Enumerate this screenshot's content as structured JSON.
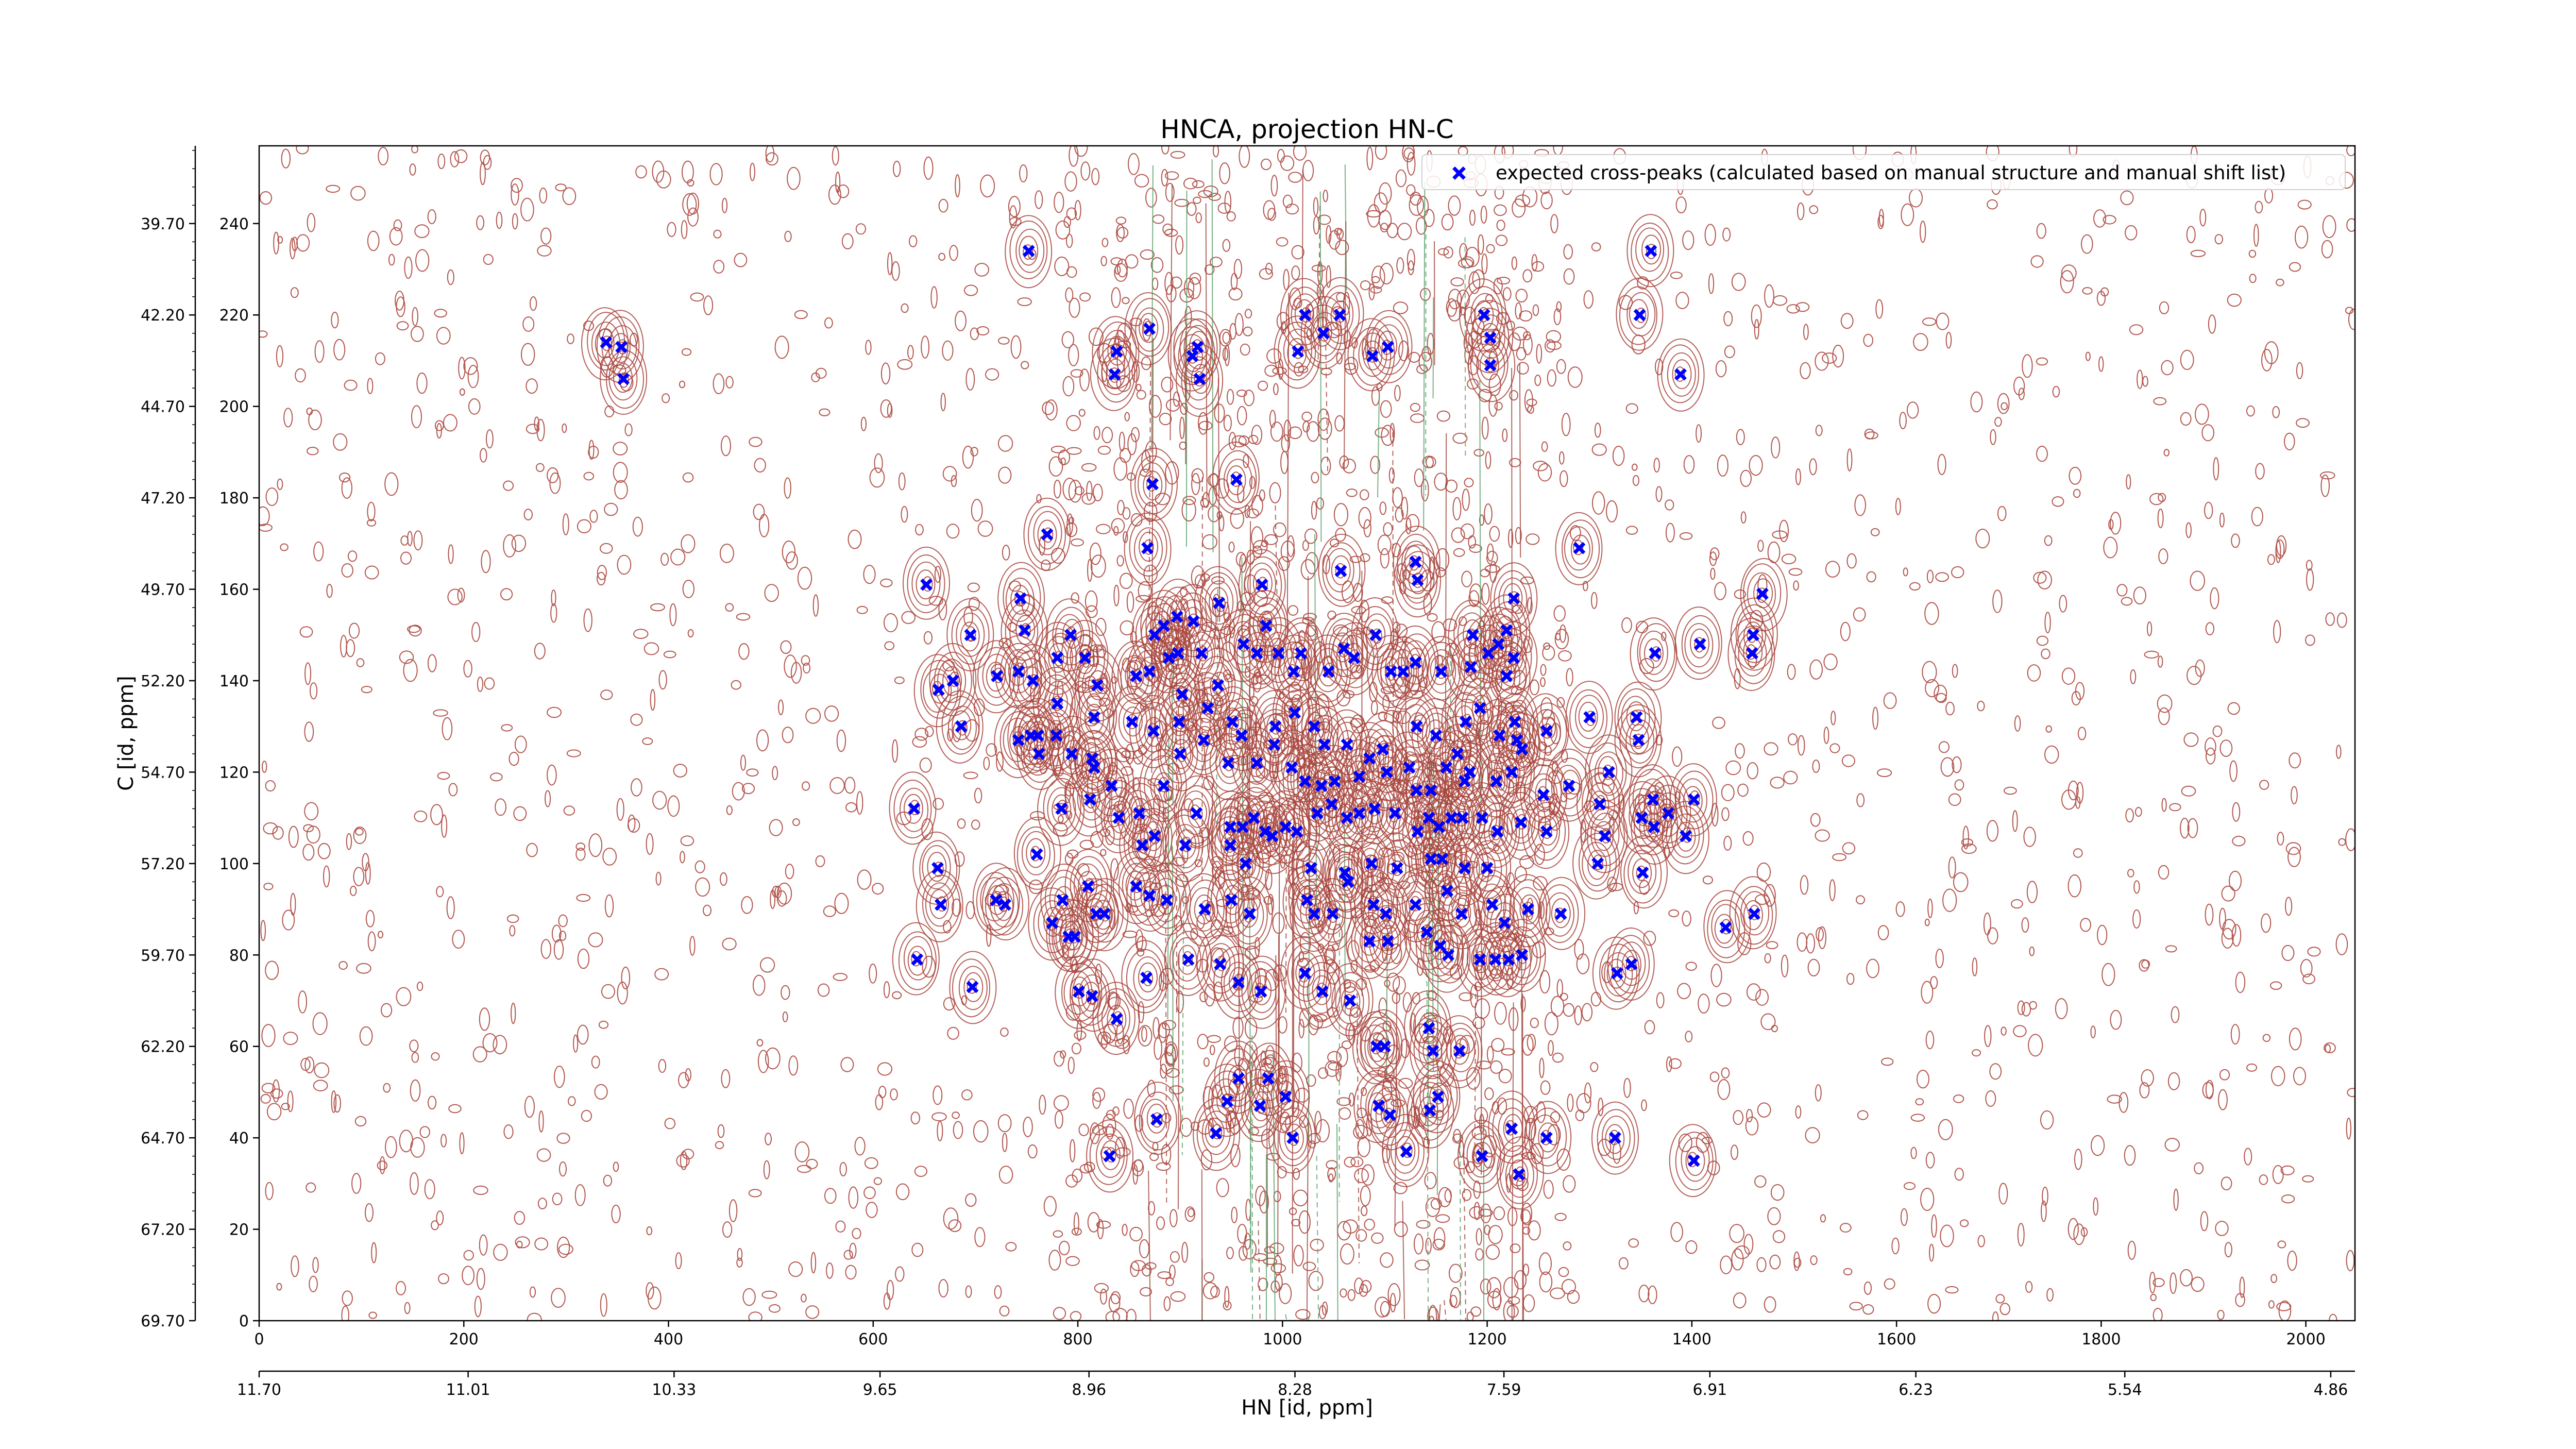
{
  "chart_data": {
    "type": "scatter",
    "title": "HNCA, projection HN-C",
    "xlabel": "HN [id, ppm]",
    "ylabel": "C [id, ppm]",
    "grid": false,
    "legend_position": "top-right",
    "x_index_range": [
      0,
      2048
    ],
    "y_index_range": [
      0,
      257
    ],
    "x_index_ticks": [
      "0",
      "200",
      "400",
      "600",
      "800",
      "1000",
      "1200",
      "1400",
      "1600",
      "1800",
      "2000"
    ],
    "x_ppm_range": [
      11.7,
      4.78
    ],
    "x_ppm_ticks": [
      "11.70",
      "11.01",
      "10.33",
      "9.65",
      "8.96",
      "8.28",
      "7.59",
      "6.91",
      "6.23",
      "5.54",
      "4.86"
    ],
    "y_index_ticks": [
      "0",
      "20",
      "40",
      "60",
      "80",
      "100",
      "120",
      "140",
      "160",
      "180",
      "200",
      "220",
      "240"
    ],
    "y_ppm_ticks": [
      "69.70",
      "67.20",
      "64.70",
      "62.20",
      "59.70",
      "57.20",
      "54.70",
      "52.20",
      "49.70",
      "47.20",
      "44.70",
      "42.20",
      "39.70"
    ],
    "series": [
      {
        "name": "expected cross-peaks (calculated based on manual structure and manual shift list)",
        "color": "#0000ff",
        "marker": "x",
        "points": [
          [
            339,
            214
          ],
          [
            354,
            213
          ],
          [
            356,
            206
          ],
          [
            752,
            234
          ],
          [
            1360,
            234
          ],
          [
            1349,
            220
          ],
          [
            1389,
            207
          ],
          [
            838,
            212
          ],
          [
            870,
            217
          ],
          [
            836,
            207
          ],
          [
            912,
            211
          ],
          [
            919,
            206
          ],
          [
            917,
            213
          ],
          [
            1022,
            220
          ],
          [
            1040,
            216
          ],
          [
            1015,
            212
          ],
          [
            1056,
            220
          ],
          [
            1088,
            211
          ],
          [
            1103,
            213
          ],
          [
            1197,
            220
          ],
          [
            1203,
            215
          ],
          [
            1203,
            209
          ],
          [
            873,
            183
          ],
          [
            955,
            184
          ],
          [
            652,
            161
          ],
          [
            770,
            172
          ],
          [
            868,
            169
          ],
          [
            1057,
            164
          ],
          [
            1130,
            166
          ],
          [
            1132,
            162
          ],
          [
            1290,
            169
          ],
          [
            1226,
            158
          ],
          [
            1469,
            159
          ],
          [
            1460,
            150
          ],
          [
            1459,
            146
          ],
          [
            1364,
            146
          ],
          [
            1408,
            148
          ],
          [
            695,
            150
          ],
          [
            678,
            140
          ],
          [
            664,
            138
          ],
          [
            721,
            141
          ],
          [
            744,
            158
          ],
          [
            748,
            151
          ],
          [
            742,
            142
          ],
          [
            756,
            140
          ],
          [
            780,
            145
          ],
          [
            793,
            150
          ],
          [
            807,
            145
          ],
          [
            819,
            139
          ],
          [
            816,
            132
          ],
          [
            780,
            135
          ],
          [
            779,
            128
          ],
          [
            761,
            128
          ],
          [
            762,
            124
          ],
          [
            742,
            127
          ],
          [
            754,
            128
          ],
          [
            794,
            124
          ],
          [
            814,
            123
          ],
          [
            857,
            141
          ],
          [
            870,
            142
          ],
          [
            875,
            150
          ],
          [
            884,
            152
          ],
          [
            889,
            145
          ],
          [
            897,
            154
          ],
          [
            898,
            146
          ],
          [
            902,
            137
          ],
          [
            913,
            153
          ],
          [
            938,
            157
          ],
          [
            921,
            146
          ],
          [
            937,
            139
          ],
          [
            962,
            148
          ],
          [
            980,
            161
          ],
          [
            984,
            152
          ],
          [
            975,
            146
          ],
          [
            996,
            146
          ],
          [
            1011,
            142
          ],
          [
            1018,
            146
          ],
          [
            1045,
            142
          ],
          [
            1060,
            147
          ],
          [
            1070,
            145
          ],
          [
            1091,
            150
          ],
          [
            1106,
            142
          ],
          [
            1118,
            142
          ],
          [
            1130,
            144
          ],
          [
            1155,
            142
          ],
          [
            1184,
            143
          ],
          [
            1186,
            150
          ],
          [
            1201,
            146
          ],
          [
            1211,
            148
          ],
          [
            1219,
            141
          ],
          [
            1226,
            145
          ],
          [
            1219,
            151
          ],
          [
            1179,
            131
          ],
          [
            1193,
            134
          ],
          [
            1227,
            131
          ],
          [
            1258,
            129
          ],
          [
            1300,
            132
          ],
          [
            1346,
            132
          ],
          [
            1348,
            127
          ],
          [
            686,
            130
          ],
          [
            853,
            131
          ],
          [
            874,
            129
          ],
          [
            899,
            131
          ],
          [
            923,
            127
          ],
          [
            927,
            134
          ],
          [
            951,
            131
          ],
          [
            960,
            128
          ],
          [
            993,
            130
          ],
          [
            1012,
            133
          ],
          [
            1031,
            130
          ],
          [
            1041,
            126
          ],
          [
            1063,
            126
          ],
          [
            1098,
            125
          ],
          [
            1131,
            130
          ],
          [
            1150,
            128
          ],
          [
            1171,
            124
          ],
          [
            1183,
            120
          ],
          [
            1212,
            128
          ],
          [
            1229,
            127
          ],
          [
            1234,
            125
          ],
          [
            816,
            121
          ],
          [
            833,
            117
          ],
          [
            884,
            117
          ],
          [
            900,
            124
          ],
          [
            947,
            122
          ],
          [
            975,
            122
          ],
          [
            992,
            126
          ],
          [
            1009,
            121
          ],
          [
            1022,
            118
          ],
          [
            1038,
            117
          ],
          [
            1051,
            118
          ],
          [
            1075,
            119
          ],
          [
            1085,
            123
          ],
          [
            1102,
            120
          ],
          [
            1124,
            121
          ],
          [
            1131,
            116
          ],
          [
            1145,
            116
          ],
          [
            1160,
            121
          ],
          [
            1178,
            118
          ],
          [
            1209,
            118
          ],
          [
            1224,
            120
          ],
          [
            1319,
            120
          ],
          [
            1280,
            117
          ],
          [
            1377,
            111
          ],
          [
            1402,
            114
          ],
          [
            1310,
            113
          ],
          [
            1255,
            115
          ],
          [
            640,
            112
          ],
          [
            784,
            112
          ],
          [
            812,
            114
          ],
          [
            840,
            110
          ],
          [
            860,
            111
          ],
          [
            875,
            106
          ],
          [
            916,
            111
          ],
          [
            949,
            108
          ],
          [
            961,
            108
          ],
          [
            972,
            110
          ],
          [
            983,
            107
          ],
          [
            1003,
            108
          ],
          [
            1014,
            107
          ],
          [
            1034,
            111
          ],
          [
            1048,
            113
          ],
          [
            1063,
            110
          ],
          [
            1075,
            111
          ],
          [
            1090,
            112
          ],
          [
            1110,
            111
          ],
          [
            1132,
            107
          ],
          [
            1143,
            110
          ],
          [
            1153,
            108
          ],
          [
            1165,
            110
          ],
          [
            1176,
            110
          ],
          [
            1195,
            110
          ],
          [
            1210,
            107
          ],
          [
            1233,
            109
          ],
          [
            1258,
            107
          ],
          [
            1315,
            106
          ],
          [
            1351,
            110
          ],
          [
            1363,
            108
          ],
          [
            1362,
            114
          ],
          [
            1394,
            106
          ],
          [
            1308,
            100
          ],
          [
            1352,
            98
          ],
          [
            863,
            104
          ],
          [
            905,
            104
          ],
          [
            949,
            104
          ],
          [
            964,
            100
          ],
          [
            990,
            106
          ],
          [
            1028,
            99
          ],
          [
            1061,
            98
          ],
          [
            1087,
            100
          ],
          [
            1112,
            99
          ],
          [
            1145,
            101
          ],
          [
            1156,
            101
          ],
          [
            1178,
            99
          ],
          [
            1200,
            99
          ],
          [
            760,
            102
          ],
          [
            663,
            99
          ],
          [
            666,
            91
          ],
          [
            720,
            92
          ],
          [
            729,
            91
          ],
          [
            785,
            92
          ],
          [
            810,
            95
          ],
          [
            818,
            89
          ],
          [
            826,
            89
          ],
          [
            857,
            95
          ],
          [
            870,
            93
          ],
          [
            887,
            92
          ],
          [
            924,
            90
          ],
          [
            950,
            92
          ],
          [
            968,
            89
          ],
          [
            1024,
            92
          ],
          [
            1049,
            89
          ],
          [
            1064,
            96
          ],
          [
            1089,
            91
          ],
          [
            1101,
            89
          ],
          [
            1130,
            91
          ],
          [
            1161,
            94
          ],
          [
            1175,
            89
          ],
          [
            1205,
            91
          ],
          [
            1217,
            87
          ],
          [
            1240,
            90
          ],
          [
            1272,
            89
          ],
          [
            1433,
            86
          ],
          [
            1461,
            89
          ],
          [
            775,
            87
          ],
          [
            791,
            84
          ],
          [
            797,
            84
          ],
          [
            1031,
            89
          ],
          [
            1085,
            83
          ],
          [
            1103,
            83
          ],
          [
            1141,
            85
          ],
          [
            1154,
            82
          ],
          [
            1162,
            80
          ],
          [
            1193,
            79
          ],
          [
            1208,
            79
          ],
          [
            1221,
            79
          ],
          [
            1234,
            80
          ],
          [
            1341,
            78
          ],
          [
            1327,
            76
          ],
          [
            643,
            79
          ],
          [
            697,
            73
          ],
          [
            801,
            72
          ],
          [
            814,
            71
          ],
          [
            867,
            75
          ],
          [
            908,
            79
          ],
          [
            939,
            78
          ],
          [
            957,
            74
          ],
          [
            979,
            72
          ],
          [
            1022,
            76
          ],
          [
            1039,
            72
          ],
          [
            1066,
            70
          ],
          [
            838,
            66
          ],
          [
            1092,
            60
          ],
          [
            1100,
            60
          ],
          [
            1143,
            64
          ],
          [
            1147,
            59
          ],
          [
            1173,
            59
          ],
          [
            957,
            53
          ],
          [
            986,
            53
          ],
          [
            1003,
            49
          ],
          [
            946,
            48
          ],
          [
            978,
            47
          ],
          [
            1010,
            40
          ],
          [
            1224,
            42
          ],
          [
            1258,
            40
          ],
          [
            1325,
            40
          ],
          [
            1402,
            35
          ],
          [
            877,
            44
          ],
          [
            935,
            41
          ],
          [
            1094,
            47
          ],
          [
            1105,
            45
          ],
          [
            1144,
            46
          ],
          [
            1152,
            49
          ],
          [
            1121,
            37
          ],
          [
            1195,
            36
          ],
          [
            1231,
            32
          ],
          [
            831,
            36
          ]
        ]
      }
    ]
  }
}
